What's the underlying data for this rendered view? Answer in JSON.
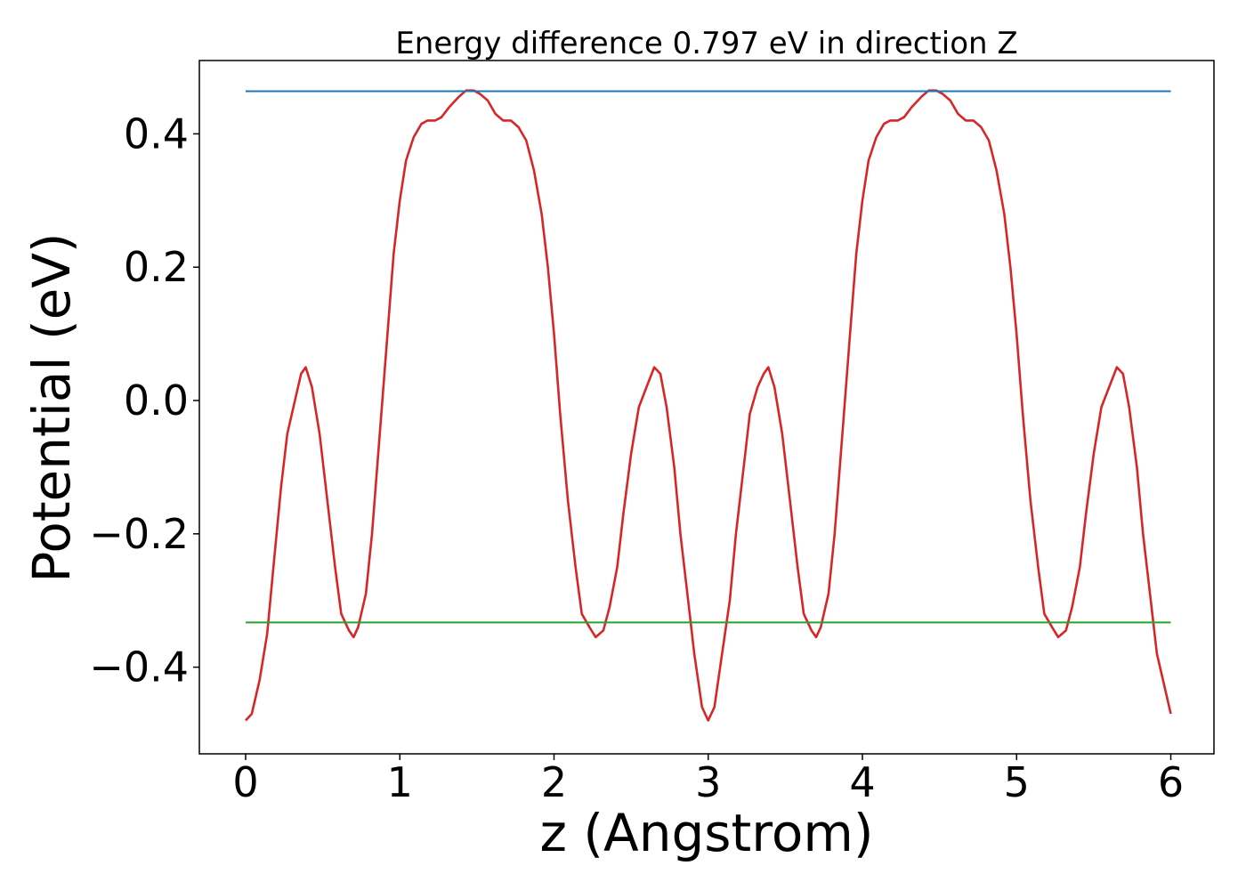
{
  "chart_data": {
    "type": "line",
    "title": "Energy difference 0.797 eV in direction Z",
    "xlabel": "z (Angstrom)",
    "ylabel": "Potential (eV)",
    "xlim": [
      -0.3,
      6.28
    ],
    "ylim": [
      -0.53,
      0.51
    ],
    "xticks": [
      0,
      1,
      2,
      3,
      4,
      5,
      6
    ],
    "xtick_labels": [
      "0",
      "1",
      "2",
      "3",
      "4",
      "5",
      "6"
    ],
    "yticks": [
      -0.4,
      -0.2,
      0.0,
      0.2,
      0.4
    ],
    "ytick_labels": [
      "−0.4",
      "−0.2",
      "0.0",
      "0.2",
      "0.4"
    ],
    "grid": false,
    "series": [
      {
        "color": "#d62728",
        "x": [
          0.0,
          0.04,
          0.09,
          0.14,
          0.18,
          0.23,
          0.27,
          0.32,
          0.36,
          0.39,
          0.43,
          0.48,
          0.53,
          0.58,
          0.62,
          0.67,
          0.7,
          0.73,
          0.78,
          0.82,
          0.87,
          0.92,
          0.96,
          1.0,
          1.04,
          1.09,
          1.14,
          1.18,
          1.23,
          1.27,
          1.32,
          1.38,
          1.43,
          1.48,
          1.52,
          1.57,
          1.62,
          1.67,
          1.72,
          1.77,
          1.82,
          1.87,
          1.92,
          1.96,
          2.0,
          2.04,
          2.09,
          2.14,
          2.18,
          2.23,
          2.27,
          2.32,
          2.36,
          2.41,
          2.45,
          2.5,
          2.55,
          2.6,
          2.65,
          2.69,
          2.73,
          2.78,
          2.82,
          2.87,
          2.91,
          2.96,
          3.0,
          3.04,
          3.09,
          3.14,
          3.18,
          3.23,
          3.27,
          3.32,
          3.36,
          3.39,
          3.43,
          3.48,
          3.53,
          3.58,
          3.62,
          3.67,
          3.7,
          3.73,
          3.78,
          3.82,
          3.87,
          3.92,
          3.96,
          4.0,
          4.04,
          4.09,
          4.14,
          4.18,
          4.23,
          4.27,
          4.32,
          4.38,
          4.43,
          4.48,
          4.52,
          4.57,
          4.62,
          4.67,
          4.72,
          4.77,
          4.82,
          4.87,
          4.92,
          4.96,
          5.0,
          5.04,
          5.09,
          5.14,
          5.18,
          5.23,
          5.27,
          5.32,
          5.36,
          5.41,
          5.45,
          5.5,
          5.55,
          5.6,
          5.65,
          5.69,
          5.73,
          5.78,
          5.82,
          5.87,
          5.91,
          5.96,
          6.0
        ],
        "y": [
          -0.48,
          -0.47,
          -0.42,
          -0.35,
          -0.25,
          -0.13,
          -0.05,
          0.0,
          0.04,
          0.05,
          0.02,
          -0.05,
          -0.15,
          -0.25,
          -0.32,
          -0.345,
          -0.355,
          -0.34,
          -0.29,
          -0.2,
          -0.05,
          0.1,
          0.22,
          0.3,
          0.36,
          0.395,
          0.415,
          0.42,
          0.42,
          0.425,
          0.44,
          0.455,
          0.465,
          0.465,
          0.46,
          0.45,
          0.43,
          0.42,
          0.42,
          0.41,
          0.39,
          0.345,
          0.28,
          0.2,
          0.1,
          -0.02,
          -0.15,
          -0.25,
          -0.32,
          -0.34,
          -0.355,
          -0.345,
          -0.31,
          -0.25,
          -0.17,
          -0.08,
          -0.01,
          0.02,
          0.05,
          0.04,
          -0.01,
          -0.1,
          -0.2,
          -0.3,
          -0.38,
          -0.46,
          -0.48,
          -0.46,
          -0.38,
          -0.3,
          -0.2,
          -0.1,
          -0.02,
          0.02,
          0.04,
          0.05,
          0.02,
          -0.05,
          -0.15,
          -0.25,
          -0.32,
          -0.345,
          -0.355,
          -0.34,
          -0.29,
          -0.2,
          -0.05,
          0.1,
          0.22,
          0.3,
          0.36,
          0.395,
          0.415,
          0.42,
          0.42,
          0.425,
          0.44,
          0.455,
          0.465,
          0.465,
          0.46,
          0.45,
          0.43,
          0.42,
          0.42,
          0.41,
          0.39,
          0.345,
          0.28,
          0.2,
          0.1,
          -0.02,
          -0.15,
          -0.25,
          -0.32,
          -0.34,
          -0.355,
          -0.345,
          -0.31,
          -0.25,
          -0.17,
          -0.08,
          -0.01,
          0.02,
          0.05,
          0.04,
          -0.01,
          -0.1,
          -0.2,
          -0.3,
          -0.38,
          -0.43,
          -0.47
        ]
      },
      {
        "color": "#1f77b4",
        "x": [
          0.0,
          6.0
        ],
        "y": [
          0.464,
          0.464
        ]
      },
      {
        "color": "#2ca02c",
        "x": [
          0.0,
          6.0
        ],
        "y": [
          -0.333,
          -0.333
        ]
      }
    ]
  }
}
